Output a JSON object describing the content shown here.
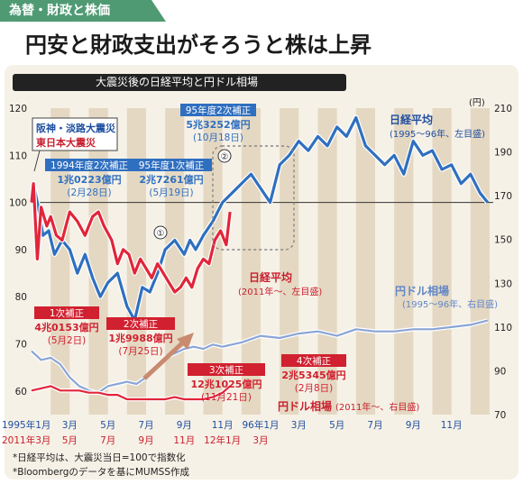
{
  "tag": "為替・財政と株価",
  "headline": "円安と財政支出がそろうと株は上昇",
  "subtitle": "大震災後の日経平均と円ドル相場",
  "left_axis": {
    "ticks": [
      60,
      70,
      80,
      90,
      100,
      110,
      120
    ]
  },
  "right_axis": {
    "unit": "(円)",
    "ticks": [
      70,
      90,
      110,
      130,
      150,
      170,
      190,
      210
    ]
  },
  "x_axis": {
    "row1": [
      "1995年1月",
      "3月",
      "5月",
      "7月",
      "9月",
      "11月",
      "96年1月",
      "3月",
      "5月",
      "7月",
      "9月",
      "11月"
    ],
    "row2": [
      "2011年3月",
      "5月",
      "7月",
      "9月",
      "11月",
      "12年1月",
      "3月"
    ]
  },
  "disasters": {
    "line1": "阪神・淡路大震災",
    "line2": "東日本大震災"
  },
  "markers": {
    "m1": "①",
    "m2": "②"
  },
  "callouts": {
    "c1995_2": {
      "title": "1994年度2次補正",
      "amount": "1兆0223億円",
      "date": "(2月28日)"
    },
    "c1995_5": {
      "title": "95年度1次補正",
      "amount": "2兆7261億円",
      "date": "(5月19日)"
    },
    "c1995_10": {
      "title": "95年度2次補正",
      "amount": "5兆3252億円",
      "date": "(10月18日)"
    },
    "c2011_1": {
      "title": "1次補正",
      "amount": "4兆0153億円",
      "date": "(5月2日)"
    },
    "c2011_2": {
      "title": "2次補正",
      "amount": "1兆9988億円",
      "date": "(7月25日)"
    },
    "c2011_3": {
      "title": "3次補正",
      "amount": "12兆1025億円",
      "date": "(11月21日)"
    },
    "c2011_4": {
      "title": "4次補正",
      "amount": "2兆5345億円",
      "date": "(2月8日)"
    }
  },
  "series_labels": {
    "nikkei1995": {
      "name": "日経平均",
      "note": "(1995〜96年、左目盛)"
    },
    "nikkei2011": {
      "name": "日経平均",
      "note": "(2011年〜、左目盛)"
    },
    "yen1995": {
      "name": "円ドル相場",
      "note": "(1995〜96年、右目盛)"
    },
    "yen2011": {
      "name": "円ドル相場",
      "note": "(2011年〜、右目盛)"
    }
  },
  "footnotes": [
    "*日経平均は、大震災当日=100で指数化",
    "*Bloombergのデータを基にMUMSS作成"
  ],
  "chart_data": {
    "type": "line",
    "left_axis_range": [
      55,
      120
    ],
    "right_axis_range": [
      70,
      210
    ],
    "x_unit": "months from disaster month (1995年1月 / 2011年3月 = 0)",
    "series": [
      {
        "name": "日経平均",
        "period": "1995〜96年",
        "axis": "left",
        "color": "#2f6fc0",
        "x": [
          0,
          0.15,
          0.4,
          0.6,
          0.9,
          1.2,
          1.6,
          2.0,
          2.4,
          2.8,
          3.2,
          3.6,
          4.0,
          4.5,
          5.0,
          5.4,
          5.8,
          6.2,
          6.6,
          7.0,
          7.5,
          8.0,
          8.3,
          8.6,
          9.0,
          9.5,
          10.0,
          10.5,
          11.0,
          11.5,
          12.0,
          12.5,
          13.0,
          13.5,
          14.0,
          14.5,
          15.0,
          15.5,
          16.0,
          16.5,
          17.0,
          17.5,
          18.0,
          18.5,
          19.0,
          19.5,
          20.0,
          20.5,
          21.0,
          21.5,
          22.0,
          22.5,
          23.0,
          23.5,
          23.9
        ],
        "y": [
          100,
          103,
          98,
          93,
          94,
          89,
          92,
          90,
          85,
          89,
          84,
          80,
          83,
          85,
          78,
          75,
          82,
          81,
          85,
          90,
          92,
          89,
          92,
          90,
          93,
          96,
          100,
          102,
          104,
          106,
          103,
          100,
          108,
          110,
          113,
          111,
          114,
          112,
          116,
          114,
          118,
          112,
          110,
          108,
          110,
          106,
          113,
          110,
          111,
          107,
          108,
          104,
          106,
          102,
          100
        ]
      },
      {
        "name": "日経平均",
        "period": "2011年〜",
        "axis": "left",
        "color": "#e1253a",
        "x": [
          0,
          0.1,
          0.3,
          0.5,
          0.8,
          1.0,
          1.3,
          1.6,
          2.0,
          2.4,
          2.8,
          3.2,
          3.5,
          3.8,
          4.2,
          4.5,
          4.8,
          5.1,
          5.4,
          5.7,
          6.0,
          6.3,
          6.6,
          6.9,
          7.2,
          7.5,
          7.8,
          8.1,
          8.4,
          8.7,
          9.0,
          9.3,
          9.6,
          9.9,
          10.2,
          10.4
        ],
        "y": [
          100,
          104,
          88,
          99,
          95,
          97,
          93,
          92,
          98,
          96,
          93,
          97,
          98,
          95,
          92,
          87,
          90,
          89,
          85,
          88,
          86,
          84,
          87,
          85,
          83,
          81,
          82,
          84,
          82,
          86,
          88,
          87,
          92,
          94,
          91,
          98
        ]
      },
      {
        "name": "円ドル相場",
        "period": "1995〜96年",
        "axis": "right",
        "color": "#8aa4d6",
        "x": [
          0,
          0.5,
          1.0,
          1.5,
          2.0,
          2.5,
          3.0,
          3.5,
          4.0,
          4.5,
          5.0,
          5.5,
          6.0,
          6.5,
          7.0,
          7.5,
          8.0,
          8.5,
          9.0,
          9.5,
          10.0,
          11.0,
          12.0,
          13.0,
          14.0,
          15.0,
          16.0,
          17.0,
          18.0,
          19.0,
          20.0,
          21.0,
          22.0,
          23.0,
          23.9
        ],
        "y": [
          99,
          95,
          96,
          93,
          87,
          83,
          81,
          80,
          83,
          84,
          85,
          84,
          87,
          92,
          96,
          98,
          100,
          101,
          100,
          102,
          101,
          103,
          106,
          105,
          107,
          108,
          106,
          109,
          108,
          108,
          109,
          109,
          110,
          111,
          113
        ]
      },
      {
        "name": "円ドル相場",
        "period": "2011年〜",
        "axis": "right",
        "color": "#e1253a",
        "x": [
          0,
          0.5,
          1.0,
          1.5,
          2.0,
          2.5,
          3.0,
          3.5,
          4.0,
          4.5,
          5.0,
          5.5,
          6.0,
          6.5,
          7.0,
          7.5,
          8.0,
          8.5,
          9.0,
          9.5,
          10.0,
          10.4
        ],
        "y": [
          81,
          82,
          83,
          81,
          81,
          81,
          80,
          80,
          79,
          79,
          77,
          77,
          77,
          77,
          77,
          78,
          77,
          77,
          77,
          78,
          80,
          83
        ]
      }
    ]
  }
}
